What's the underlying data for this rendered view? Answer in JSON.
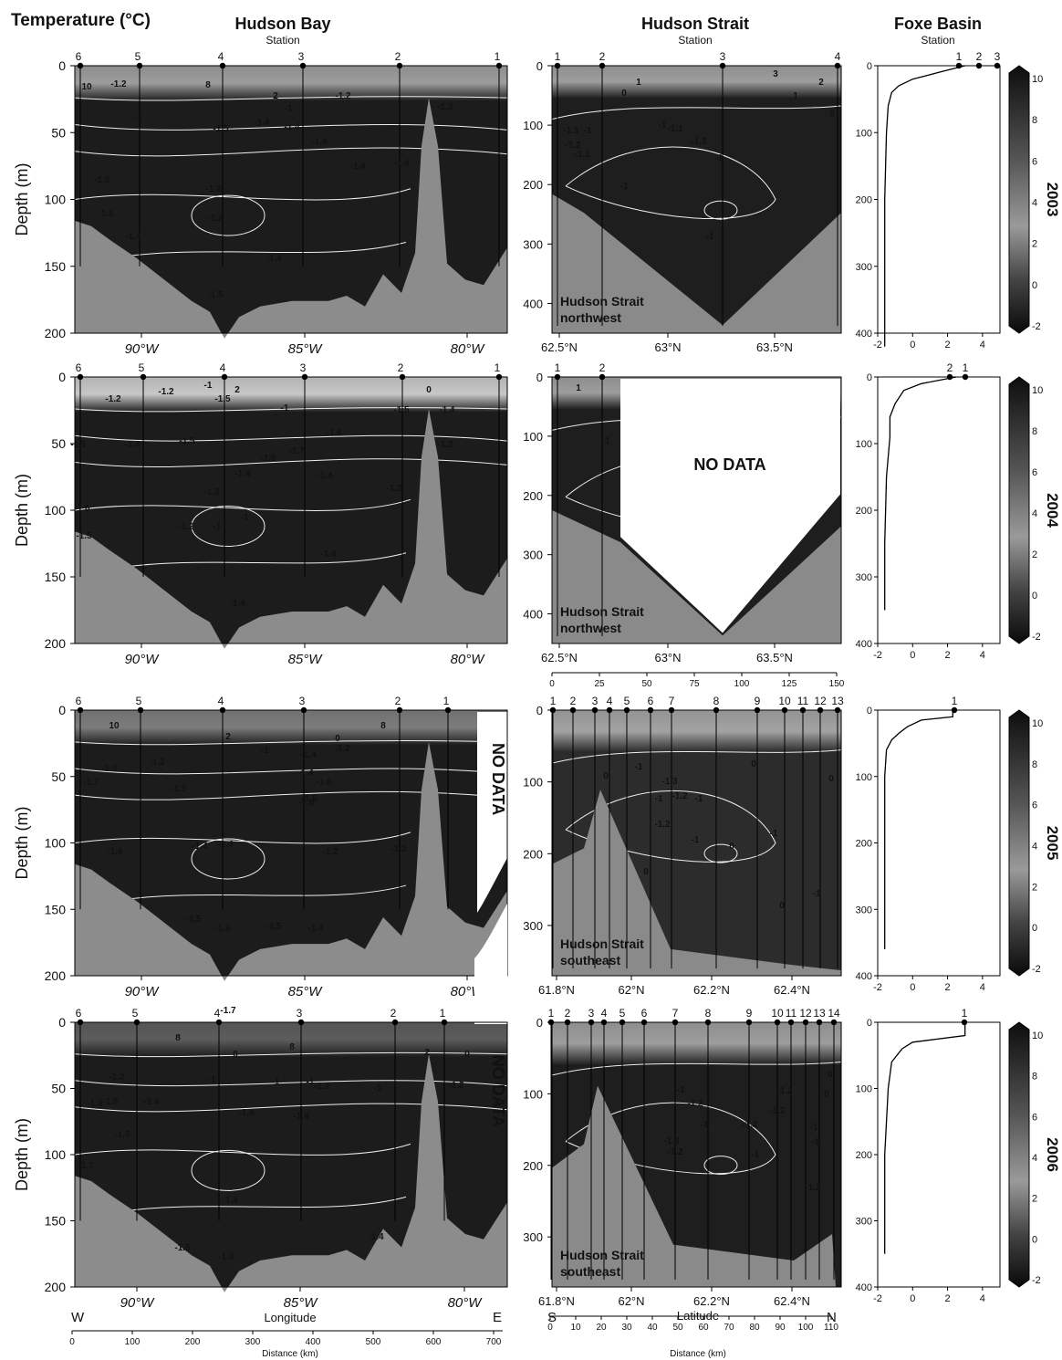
{
  "figure": {
    "header_title": "Temperature (°C)",
    "station_label": "Station",
    "no_data": "NO DATA",
    "depth_label": "Depth (m)",
    "hb_west": "W",
    "hb_east": "E",
    "hb_axis_label": "Longitude",
    "hb_distance_label": "Distance (km)",
    "hs_south": "S",
    "hs_north": "N",
    "hs_axis_label": "Latitude",
    "hs_distance_label": "Distance (km)"
  },
  "colorbar": {
    "ticks": [
      "10",
      "8",
      "6",
      "4",
      "2",
      "0",
      "-2"
    ]
  },
  "chart_data": [
    {
      "type": "heatmap",
      "region": "Hudson Bay",
      "years": [
        "2003",
        "2004",
        "2005",
        "2006"
      ],
      "ylabel": "Depth (m)",
      "y_ticks": [
        0,
        50,
        100,
        150,
        200
      ],
      "ylim": [
        200,
        0
      ],
      "x_ticks": [
        "90°W",
        "85°W",
        "80°W"
      ],
      "distance_ticks": [
        0,
        100,
        200,
        300,
        400,
        500,
        600,
        700
      ],
      "xlabel": "Longitude",
      "stations": [
        "6",
        "5",
        "4",
        "3",
        "2",
        "1"
      ],
      "no_data_years": [
        "2005",
        "2006"
      ],
      "contour_labels_2003": [
        "10",
        "8",
        "2",
        "0",
        "-1",
        "-1.2",
        "-1.4",
        "-1.5",
        "-1.6"
      ],
      "contour_labels_2004": [
        "2",
        "0",
        "-1",
        "-1.2",
        "-1.4",
        "-1.5",
        "-1.6",
        "-1.7"
      ],
      "contour_labels_2005": [
        "10",
        "8",
        "2",
        "0",
        "-1",
        "-1.2",
        "-1.4",
        "-1.5",
        "-1.6",
        "-1.7"
      ],
      "contour_labels_2006": [
        "8",
        "2",
        "0",
        "-1",
        "-1.2",
        "-1.4",
        "-1.5",
        "-1.6"
      ]
    },
    {
      "type": "heatmap",
      "region": "Hudson Strait",
      "panels": [
        {
          "year": "2003",
          "label": "Hudson Strait northwest",
          "y_ticks": [
            0,
            100,
            200,
            300,
            400
          ],
          "x_ticks": [
            "62.5°N",
            "63°N",
            "63.5°N"
          ],
          "stations": [
            "1",
            "2",
            "3",
            "4"
          ]
        },
        {
          "year": "2004",
          "label": "Hudson Strait northwest",
          "y_ticks": [
            0,
            100,
            200,
            300,
            400
          ],
          "x_ticks": [
            "62.5°N",
            "63°N",
            "63.5°N"
          ],
          "distance_ticks": [
            0,
            25,
            50,
            75,
            100,
            125,
            150
          ],
          "stations": [
            "1",
            "2"
          ],
          "no_data": true
        },
        {
          "year": "2005",
          "label": "Hudson Strait southeast",
          "y_ticks": [
            0,
            100,
            200,
            300
          ],
          "x_ticks": [
            "61.8°N",
            "62°N",
            "62.2°N",
            "62.4°N"
          ],
          "stations": [
            "1",
            "2",
            "3",
            "4",
            "5",
            "6",
            "7",
            "8",
            "9",
            "10",
            "11",
            "12",
            "13"
          ]
        },
        {
          "year": "2006",
          "label": "Hudson Strait southeast",
          "y_ticks": [
            0,
            100,
            200,
            300
          ],
          "x_ticks": [
            "61.8°N",
            "62°N",
            "62.2°N",
            "62.4°N"
          ],
          "distance_ticks": [
            0,
            10,
            20,
            30,
            40,
            50,
            60,
            70,
            80,
            90,
            100,
            110
          ],
          "stations": [
            "1",
            "2",
            "3",
            "4",
            "5",
            "6",
            "7",
            "8",
            "9",
            "10",
            "11",
            "12",
            "13",
            "14"
          ]
        }
      ],
      "xlabel": "Latitude"
    },
    {
      "type": "line",
      "region": "Foxe Basin",
      "xlim": [
        -2,
        5
      ],
      "x_ticks": [
        -2,
        0,
        2,
        4
      ],
      "y_ticks": [
        0,
        100,
        200,
        300,
        400
      ],
      "ylim": [
        400,
        0
      ],
      "years": [
        "2003",
        "2004",
        "2005",
        "2006"
      ],
      "stations": {
        "2003": [
          "1",
          "2",
          "3"
        ],
        "2004": [
          "2",
          "1"
        ],
        "2005": [
          "1"
        ],
        "2006": [
          "1"
        ]
      },
      "profile_2003": {
        "depth": [
          0,
          10,
          20,
          30,
          40,
          60,
          100,
          200,
          300,
          420
        ],
        "temp": [
          3,
          1.5,
          0,
          -0.8,
          -1.2,
          -1.4,
          -1.5,
          -1.6,
          -1.6,
          -1.6
        ]
      },
      "profile_2004": {
        "depth": [
          0,
          10,
          20,
          40,
          60,
          90,
          150,
          250,
          350
        ],
        "temp": [
          2.5,
          0.5,
          -0.5,
          -1.0,
          -1.3,
          -1.3,
          -1.5,
          -1.6,
          -1.6
        ]
      },
      "profile_2005": {
        "depth": [
          0,
          10,
          15,
          25,
          35,
          45,
          60,
          100,
          200,
          360
        ],
        "temp": [
          2.3,
          2.3,
          0.5,
          -0.3,
          -0.8,
          -1.2,
          -1.5,
          -1.6,
          -1.6,
          -1.6
        ]
      },
      "profile_2006": {
        "depth": [
          0,
          20,
          30,
          40,
          60,
          100,
          200,
          350
        ],
        "temp": [
          3,
          3,
          0,
          -0.6,
          -1.2,
          -1.4,
          -1.6,
          -1.6
        ]
      }
    }
  ]
}
